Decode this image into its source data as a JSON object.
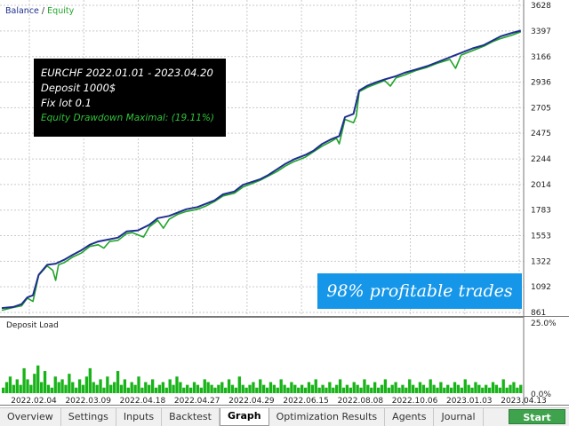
{
  "legend": {
    "balance": "Balance",
    "separator": "/",
    "equity": "Equity"
  },
  "info": {
    "line1": "EURCHF 2022.01.01 - 2023.04.20",
    "line2": "Deposit 1000$",
    "line3": "Fix lot 0.1",
    "line4": "Equity Drawdown Maximal: (19.11%)"
  },
  "promo": "98% profitable trades",
  "load_panel": {
    "title": "Deposit Load",
    "max_label": "25.0%",
    "min_label": "0.0%"
  },
  "tabs": [
    {
      "label": "Overview"
    },
    {
      "label": "Settings"
    },
    {
      "label": "Inputs"
    },
    {
      "label": "Backtest"
    },
    {
      "label": "Graph"
    },
    {
      "label": "Optimization Results"
    },
    {
      "label": "Agents"
    },
    {
      "label": "Journal"
    }
  ],
  "start_label": "Start",
  "colors": {
    "balance": "#1f2f8f",
    "equity": "#22a52a",
    "load": "#18b318",
    "info_bg": "#000000",
    "promo_bg": "#1596e8",
    "start": "#3fa34d"
  },
  "chart_data": [
    {
      "type": "line",
      "series": [
        {
          "name": "Balance",
          "points": [
            [
              0,
              900
            ],
            [
              4,
              910
            ],
            [
              7,
              935
            ],
            [
              9,
              995
            ],
            [
              11,
              1015
            ],
            [
              13,
              1200
            ],
            [
              16,
              1290
            ],
            [
              19,
              1300
            ],
            [
              22,
              1335
            ],
            [
              25,
              1380
            ],
            [
              28,
              1420
            ],
            [
              31,
              1470
            ],
            [
              34,
              1500
            ],
            [
              38,
              1520
            ],
            [
              41,
              1535
            ],
            [
              44,
              1590
            ],
            [
              48,
              1600
            ],
            [
              52,
              1650
            ],
            [
              55,
              1710
            ],
            [
              59,
              1730
            ],
            [
              62,
              1760
            ],
            [
              65,
              1790
            ],
            [
              69,
              1810
            ],
            [
              72,
              1840
            ],
            [
              75,
              1870
            ],
            [
              78,
              1925
            ],
            [
              82,
              1950
            ],
            [
              85,
              2010
            ],
            [
              88,
              2035
            ],
            [
              91,
              2060
            ],
            [
              94,
              2100
            ],
            [
              97,
              2150
            ],
            [
              100,
              2200
            ],
            [
              103,
              2240
            ],
            [
              107,
              2280
            ],
            [
              110,
              2320
            ],
            [
              113,
              2380
            ],
            [
              116,
              2420
            ],
            [
              119,
              2450
            ],
            [
              121,
              2620
            ],
            [
              124,
              2650
            ],
            [
              126,
              2860
            ],
            [
              129,
              2905
            ],
            [
              132,
              2935
            ],
            [
              135,
              2960
            ],
            [
              139,
              2990
            ],
            [
              142,
              3020
            ],
            [
              146,
              3050
            ],
            [
              150,
              3080
            ],
            [
              154,
              3120
            ],
            [
              158,
              3160
            ],
            [
              162,
              3200
            ],
            [
              166,
              3240
            ],
            [
              170,
              3270
            ],
            [
              173,
              3310
            ],
            [
              176,
              3350
            ],
            [
              180,
              3380
            ],
            [
              183,
              3400
            ]
          ]
        },
        {
          "name": "Equity",
          "points": [
            [
              0,
              880
            ],
            [
              4,
              905
            ],
            [
              7,
              920
            ],
            [
              9,
              990
            ],
            [
              11,
              960
            ],
            [
              13,
              1195
            ],
            [
              16,
              1280
            ],
            [
              18,
              1240
            ],
            [
              19,
              1150
            ],
            [
              20,
              1290
            ],
            [
              22,
              1310
            ],
            [
              25,
              1360
            ],
            [
              28,
              1395
            ],
            [
              31,
              1455
            ],
            [
              34,
              1470
            ],
            [
              36,
              1440
            ],
            [
              38,
              1500
            ],
            [
              41,
              1510
            ],
            [
              44,
              1570
            ],
            [
              46,
              1580
            ],
            [
              48,
              1560
            ],
            [
              50,
              1540
            ],
            [
              52,
              1630
            ],
            [
              55,
              1690
            ],
            [
              57,
              1620
            ],
            [
              59,
              1700
            ],
            [
              62,
              1745
            ],
            [
              65,
              1770
            ],
            [
              69,
              1790
            ],
            [
              72,
              1820
            ],
            [
              75,
              1860
            ],
            [
              78,
              1910
            ],
            [
              82,
              1935
            ],
            [
              85,
              1990
            ],
            [
              88,
              2020
            ],
            [
              91,
              2050
            ],
            [
              94,
              2090
            ],
            [
              97,
              2130
            ],
            [
              100,
              2180
            ],
            [
              103,
              2220
            ],
            [
              107,
              2260
            ],
            [
              110,
              2310
            ],
            [
              113,
              2360
            ],
            [
              116,
              2400
            ],
            [
              118,
              2430
            ],
            [
              119,
              2380
            ],
            [
              121,
              2600
            ],
            [
              124,
              2570
            ],
            [
              125,
              2630
            ],
            [
              126,
              2850
            ],
            [
              129,
              2890
            ],
            [
              132,
              2920
            ],
            [
              135,
              2950
            ],
            [
              137,
              2900
            ],
            [
              139,
              2975
            ],
            [
              142,
              3000
            ],
            [
              146,
              3040
            ],
            [
              150,
              3070
            ],
            [
              154,
              3110
            ],
            [
              158,
              3140
            ],
            [
              160,
              3060
            ],
            [
              162,
              3180
            ],
            [
              166,
              3220
            ],
            [
              170,
              3260
            ],
            [
              173,
              3300
            ],
            [
              176,
              3330
            ],
            [
              180,
              3360
            ],
            [
              183,
              3390
            ]
          ]
        }
      ],
      "x_tick_labels": [
        "2022.02.04",
        "2022.03.09",
        "2022.04.18",
        "2022.04.27",
        "2022.04.29",
        "2022.06.15",
        "2022.08.08",
        "2022.10.06",
        "2023.01.03",
        "2023.04.13"
      ],
      "y_tick_labels": [
        "3628",
        "3397",
        "3166",
        "2936",
        "2705",
        "2475",
        "2244",
        "2014",
        "1783",
        "1553",
        "1322",
        "1092",
        "861"
      ],
      "ylim": [
        861,
        3628
      ],
      "xlim": [
        0,
        184
      ],
      "grid": true,
      "legend_position": "top-left"
    },
    {
      "type": "bar",
      "title": "Deposit Load",
      "values": [
        2,
        4,
        6,
        3,
        5,
        3,
        9,
        5,
        3,
        7,
        10,
        4,
        8,
        3,
        2,
        6,
        4,
        5,
        3,
        7,
        4,
        2,
        5,
        3,
        6,
        9,
        4,
        3,
        5,
        2,
        6,
        3,
        4,
        8,
        3,
        5,
        2,
        4,
        3,
        6,
        2,
        4,
        3,
        5,
        2,
        3,
        4,
        2,
        5,
        3,
        6,
        4,
        2,
        3,
        2,
        4,
        3,
        2,
        5,
        4,
        3,
        2,
        3,
        4,
        2,
        5,
        3,
        2,
        6,
        3,
        2,
        3,
        4,
        2,
        5,
        3,
        2,
        4,
        3,
        2,
        5,
        3,
        2,
        4,
        3,
        2,
        3,
        2,
        4,
        3,
        5,
        2,
        3,
        2,
        4,
        2,
        3,
        5,
        2,
        3,
        2,
        4,
        3,
        2,
        5,
        3,
        2,
        4,
        2,
        3,
        5,
        2,
        3,
        4,
        2,
        3,
        2,
        5,
        3,
        2,
        4,
        3,
        2,
        5,
        3,
        2,
        4,
        2,
        3,
        2,
        4,
        3,
        2,
        5,
        3,
        2,
        4,
        3,
        2,
        3,
        2,
        4,
        3,
        2,
        5,
        2,
        3,
        4,
        2,
        3
      ],
      "ylim": [
        0,
        25
      ]
    }
  ]
}
